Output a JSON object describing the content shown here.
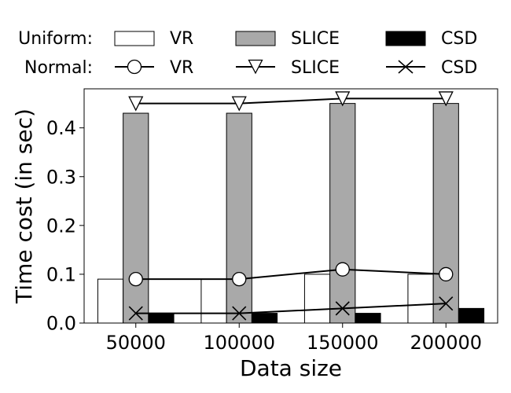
{
  "chart_data": {
    "type": "bar",
    "categories": [
      "50000",
      "100000",
      "150000",
      "200000"
    ],
    "xlabel": "Data size",
    "ylabel": "Time cost (in sec)",
    "ylim": [
      0,
      0.48
    ],
    "yticks": [
      "0.0",
      "0.1",
      "0.2",
      "0.3",
      "0.4"
    ],
    "ytick_values": [
      0,
      0.1,
      0.2,
      0.3,
      0.4
    ],
    "grid": false,
    "legend_position": "top",
    "legend_groups": [
      {
        "label": "Uniform:",
        "style": "bars"
      },
      {
        "label": "Normal:",
        "style": "lines"
      }
    ],
    "bar_series": [
      {
        "group": "Uniform",
        "name": "VR",
        "color": "#ffffff",
        "values": [
          0.09,
          0.09,
          0.1,
          0.1
        ]
      },
      {
        "group": "Uniform",
        "name": "SLICE",
        "color": "#a9a9a9",
        "values": [
          0.43,
          0.43,
          0.45,
          0.45
        ]
      },
      {
        "group": "Uniform",
        "name": "CSD",
        "color": "#000000",
        "values": [
          0.02,
          0.02,
          0.02,
          0.03
        ]
      }
    ],
    "line_series": [
      {
        "group": "Normal",
        "name": "VR",
        "marker": "circle",
        "values": [
          0.09,
          0.09,
          0.11,
          0.1
        ]
      },
      {
        "group": "Normal",
        "name": "SLICE",
        "marker": "triangle-down",
        "values": [
          0.45,
          0.45,
          0.46,
          0.46
        ]
      },
      {
        "group": "Normal",
        "name": "CSD",
        "marker": "x",
        "values": [
          0.02,
          0.02,
          0.03,
          0.04
        ]
      }
    ]
  }
}
